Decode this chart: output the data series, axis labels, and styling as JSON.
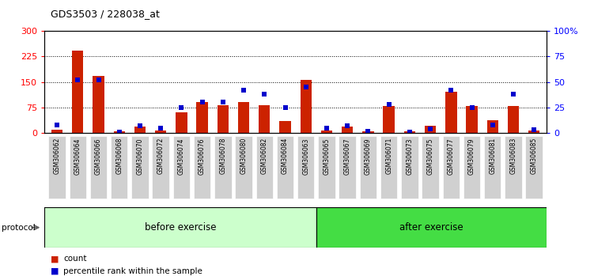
{
  "title": "GDS3503 / 228038_at",
  "samples": [
    "GSM306062",
    "GSM306064",
    "GSM306066",
    "GSM306068",
    "GSM306070",
    "GSM306072",
    "GSM306074",
    "GSM306076",
    "GSM306078",
    "GSM306080",
    "GSM306082",
    "GSM306084",
    "GSM306063",
    "GSM306065",
    "GSM306067",
    "GSM306069",
    "GSM306071",
    "GSM306073",
    "GSM306075",
    "GSM306077",
    "GSM306079",
    "GSM306081",
    "GSM306083",
    "GSM306085"
  ],
  "counts": [
    10,
    242,
    168,
    5,
    18,
    8,
    60,
    90,
    82,
    90,
    82,
    35,
    155,
    8,
    18,
    5,
    80,
    5,
    22,
    120,
    80,
    38,
    80,
    8
  ],
  "percentiles": [
    8,
    52,
    52,
    1,
    7,
    5,
    25,
    30,
    30,
    42,
    38,
    25,
    45,
    5,
    7,
    2,
    28,
    1,
    4,
    42,
    25,
    8,
    38,
    3
  ],
  "before_count": 13,
  "after_count": 11,
  "bar_color": "#cc2200",
  "scatter_color": "#0000cc",
  "left_ylim": [
    0,
    300
  ],
  "right_ylim": [
    0,
    100
  ],
  "left_yticks": [
    0,
    75,
    150,
    225,
    300
  ],
  "right_yticks": [
    0,
    25,
    50,
    75,
    100
  ],
  "right_yticklabels": [
    "0",
    "25",
    "50",
    "75",
    "100%"
  ],
  "before_color": "#ccffcc",
  "after_color": "#44dd44",
  "protocol_label": "protocol",
  "before_label": "before exercise",
  "after_label": "after exercise",
  "legend_count": "count",
  "legend_pct": "percentile rank within the sample",
  "bg_color": "#ffffff",
  "tick_bg_color": "#d0d0d0",
  "separator_color": "#404040"
}
